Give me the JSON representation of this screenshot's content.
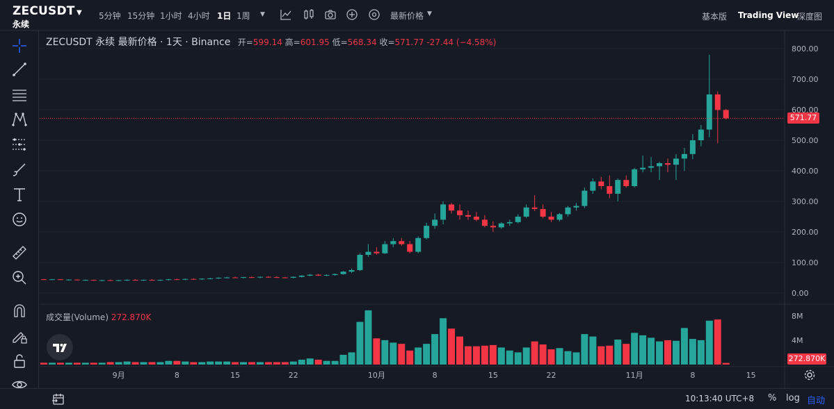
{
  "header": {
    "symbol": "ZECUSDT",
    "contract": "永续",
    "timeframes": [
      "5分钟",
      "15分钟",
      "1小时",
      "4小时",
      "1日",
      "1周"
    ],
    "active_timeframe": "1日",
    "price_type": "最新价格",
    "views": [
      "基本版",
      "Trading View",
      "深度图"
    ],
    "active_view": "Trading View"
  },
  "legend": {
    "title": "ZECUSDT 永续 最新价格 · 1天 · Binance",
    "open_label": "开=",
    "open": "599.14",
    "high_label": "高=",
    "high": "601.95",
    "low_label": "低=",
    "low": "568.34",
    "close_label": "收=",
    "close": "571.77",
    "change": "-27.44 (−4.58%)"
  },
  "volume_legend": {
    "label": "成交量(Volume)",
    "value": "272.870K"
  },
  "last_price_tag": "571.77",
  "volume_tag": "272.870K",
  "bottom": {
    "time": "10:13:40 UTC+8",
    "percent": "%",
    "log": "log",
    "auto": "自动"
  },
  "colors": {
    "up": "#26a69a",
    "down": "#f23645",
    "background": "#161a25",
    "grid": "#2a2e39",
    "accent": "#2962ff"
  },
  "icons": [
    "crosshair-icon",
    "trend-line-icon",
    "fib-icon",
    "pattern-icon",
    "forecast-icon",
    "brush-icon",
    "text-icon",
    "emoji-icon",
    "ruler-icon",
    "zoom-icon",
    "magnet-icon",
    "lock-draw-icon",
    "lock-icon",
    "eye-icon",
    "indicator-icon",
    "template-icon",
    "camera-icon",
    "plus-icon",
    "replay-icon",
    "date-range-icon",
    "settings-icon"
  ],
  "chart_data": {
    "type": "candlestick",
    "title": "ZECUSDT 永续 最新价格 · 1天 · Binance",
    "y_ticks": [
      "800.00",
      "700.00",
      "600.00",
      "500.00",
      "400.00",
      "300.00",
      "200.00",
      "100.00",
      "0.00"
    ],
    "ylim": [
      0,
      800
    ],
    "x_ticks": [
      "9月",
      "8",
      "15",
      "22",
      "10月",
      "8",
      "15",
      "22",
      "11月",
      "8",
      "15"
    ],
    "volume_ticks": [
      "8M",
      "4M"
    ],
    "volume_ylim": [
      0,
      9
    ],
    "grid": true,
    "candles": [
      {
        "o": 45,
        "h": 47,
        "l": 42,
        "c": 44,
        "v": 0.3
      },
      {
        "o": 44,
        "h": 46,
        "l": 42,
        "c": 45,
        "v": 0.3
      },
      {
        "o": 45,
        "h": 46,
        "l": 42,
        "c": 43,
        "v": 0.3
      },
      {
        "o": 43,
        "h": 45,
        "l": 41,
        "c": 44,
        "v": 0.3
      },
      {
        "o": 44,
        "h": 45,
        "l": 41,
        "c": 42,
        "v": 0.3
      },
      {
        "o": 42,
        "h": 44,
        "l": 40,
        "c": 43,
        "v": 0.3
      },
      {
        "o": 43,
        "h": 44,
        "l": 40,
        "c": 41,
        "v": 0.3
      },
      {
        "o": 41,
        "h": 43,
        "l": 39,
        "c": 42,
        "v": 0.3
      },
      {
        "o": 42,
        "h": 44,
        "l": 40,
        "c": 41,
        "v": 0.4
      },
      {
        "o": 41,
        "h": 43,
        "l": 39,
        "c": 42,
        "v": 0.4
      },
      {
        "o": 42,
        "h": 45,
        "l": 40,
        "c": 43,
        "v": 0.5
      },
      {
        "o": 43,
        "h": 45,
        "l": 41,
        "c": 42,
        "v": 0.4
      },
      {
        "o": 42,
        "h": 44,
        "l": 40,
        "c": 43,
        "v": 0.4
      },
      {
        "o": 43,
        "h": 45,
        "l": 41,
        "c": 42,
        "v": 0.4
      },
      {
        "o": 42,
        "h": 44,
        "l": 40,
        "c": 43,
        "v": 0.4
      },
      {
        "o": 43,
        "h": 46,
        "l": 41,
        "c": 45,
        "v": 0.6
      },
      {
        "o": 45,
        "h": 47,
        "l": 43,
        "c": 44,
        "v": 0.6
      },
      {
        "o": 44,
        "h": 47,
        "l": 42,
        "c": 46,
        "v": 0.5
      },
      {
        "o": 46,
        "h": 48,
        "l": 44,
        "c": 45,
        "v": 0.4
      },
      {
        "o": 45,
        "h": 48,
        "l": 43,
        "c": 47,
        "v": 0.4
      },
      {
        "o": 47,
        "h": 50,
        "l": 45,
        "c": 48,
        "v": 0.5
      },
      {
        "o": 48,
        "h": 51,
        "l": 46,
        "c": 50,
        "v": 0.5
      },
      {
        "o": 50,
        "h": 53,
        "l": 48,
        "c": 51,
        "v": 0.5
      },
      {
        "o": 51,
        "h": 54,
        "l": 49,
        "c": 50,
        "v": 0.4
      },
      {
        "o": 50,
        "h": 53,
        "l": 48,
        "c": 52,
        "v": 0.4
      },
      {
        "o": 52,
        "h": 54,
        "l": 49,
        "c": 51,
        "v": 0.4
      },
      {
        "o": 51,
        "h": 54,
        "l": 49,
        "c": 53,
        "v": 0.4
      },
      {
        "o": 53,
        "h": 55,
        "l": 50,
        "c": 52,
        "v": 0.4
      },
      {
        "o": 52,
        "h": 55,
        "l": 50,
        "c": 51,
        "v": 0.4
      },
      {
        "o": 51,
        "h": 53,
        "l": 48,
        "c": 50,
        "v": 0.4
      },
      {
        "o": 50,
        "h": 54,
        "l": 48,
        "c": 53,
        "v": 0.5
      },
      {
        "o": 53,
        "h": 58,
        "l": 51,
        "c": 57,
        "v": 0.8
      },
      {
        "o": 57,
        "h": 62,
        "l": 55,
        "c": 60,
        "v": 1.0
      },
      {
        "o": 60,
        "h": 63,
        "l": 56,
        "c": 57,
        "v": 0.8
      },
      {
        "o": 57,
        "h": 61,
        "l": 55,
        "c": 59,
        "v": 0.6
      },
      {
        "o": 59,
        "h": 64,
        "l": 57,
        "c": 62,
        "v": 0.6
      },
      {
        "o": 62,
        "h": 72,
        "l": 60,
        "c": 70,
        "v": 1.6
      },
      {
        "o": 70,
        "h": 80,
        "l": 66,
        "c": 75,
        "v": 2.0
      },
      {
        "o": 75,
        "h": 130,
        "l": 72,
        "c": 125,
        "v": 7.0
      },
      {
        "o": 125,
        "h": 160,
        "l": 118,
        "c": 135,
        "v": 8.9
      },
      {
        "o": 135,
        "h": 150,
        "l": 125,
        "c": 130,
        "v": 4.3
      },
      {
        "o": 130,
        "h": 170,
        "l": 128,
        "c": 160,
        "v": 4.0
      },
      {
        "o": 160,
        "h": 180,
        "l": 150,
        "c": 170,
        "v": 3.6
      },
      {
        "o": 170,
        "h": 180,
        "l": 155,
        "c": 160,
        "v": 3.4
      },
      {
        "o": 160,
        "h": 170,
        "l": 130,
        "c": 135,
        "v": 2.3
      },
      {
        "o": 135,
        "h": 185,
        "l": 130,
        "c": 180,
        "v": 2.8
      },
      {
        "o": 180,
        "h": 230,
        "l": 175,
        "c": 220,
        "v": 3.4
      },
      {
        "o": 220,
        "h": 260,
        "l": 210,
        "c": 240,
        "v": 5.0
      },
      {
        "o": 240,
        "h": 300,
        "l": 225,
        "c": 290,
        "v": 7.6
      },
      {
        "o": 290,
        "h": 295,
        "l": 260,
        "c": 270,
        "v": 5.9
      },
      {
        "o": 270,
        "h": 290,
        "l": 240,
        "c": 255,
        "v": 4.6
      },
      {
        "o": 255,
        "h": 270,
        "l": 240,
        "c": 250,
        "v": 3.0
      },
      {
        "o": 250,
        "h": 265,
        "l": 235,
        "c": 240,
        "v": 3.0
      },
      {
        "o": 240,
        "h": 255,
        "l": 215,
        "c": 220,
        "v": 3.1
      },
      {
        "o": 220,
        "h": 235,
        "l": 200,
        "c": 215,
        "v": 3.2
      },
      {
        "o": 215,
        "h": 232,
        "l": 210,
        "c": 228,
        "v": 2.8
      },
      {
        "o": 228,
        "h": 240,
        "l": 220,
        "c": 232,
        "v": 2.3
      },
      {
        "o": 232,
        "h": 258,
        "l": 228,
        "c": 250,
        "v": 2.0
      },
      {
        "o": 250,
        "h": 290,
        "l": 245,
        "c": 280,
        "v": 2.8
      },
      {
        "o": 280,
        "h": 320,
        "l": 268,
        "c": 275,
        "v": 3.8
      },
      {
        "o": 275,
        "h": 290,
        "l": 245,
        "c": 250,
        "v": 3.3
      },
      {
        "o": 250,
        "h": 265,
        "l": 232,
        "c": 240,
        "v": 2.5
      },
      {
        "o": 240,
        "h": 262,
        "l": 235,
        "c": 258,
        "v": 2.7
      },
      {
        "o": 258,
        "h": 285,
        "l": 250,
        "c": 280,
        "v": 2.2
      },
      {
        "o": 280,
        "h": 295,
        "l": 270,
        "c": 285,
        "v": 2.0
      },
      {
        "o": 285,
        "h": 345,
        "l": 278,
        "c": 335,
        "v": 5.0
      },
      {
        "o": 335,
        "h": 375,
        "l": 325,
        "c": 365,
        "v": 4.6
      },
      {
        "o": 365,
        "h": 380,
        "l": 340,
        "c": 350,
        "v": 3.0
      },
      {
        "o": 350,
        "h": 385,
        "l": 310,
        "c": 325,
        "v": 3.1
      },
      {
        "o": 325,
        "h": 375,
        "l": 300,
        "c": 370,
        "v": 4.1
      },
      {
        "o": 370,
        "h": 385,
        "l": 345,
        "c": 350,
        "v": 3.4
      },
      {
        "o": 350,
        "h": 410,
        "l": 345,
        "c": 405,
        "v": 5.2
      },
      {
        "o": 405,
        "h": 450,
        "l": 395,
        "c": 410,
        "v": 4.8
      },
      {
        "o": 410,
        "h": 445,
        "l": 395,
        "c": 415,
        "v": 4.4
      },
      {
        "o": 415,
        "h": 430,
        "l": 370,
        "c": 425,
        "v": 3.8
      },
      {
        "o": 425,
        "h": 440,
        "l": 395,
        "c": 420,
        "v": 4.0
      },
      {
        "o": 420,
        "h": 455,
        "l": 370,
        "c": 440,
        "v": 3.9
      },
      {
        "o": 440,
        "h": 475,
        "l": 400,
        "c": 455,
        "v": 6.0
      },
      {
        "o": 455,
        "h": 520,
        "l": 438,
        "c": 500,
        "v": 4.2
      },
      {
        "o": 500,
        "h": 550,
        "l": 480,
        "c": 535,
        "v": 4.0
      },
      {
        "o": 535,
        "h": 780,
        "l": 510,
        "c": 650,
        "v": 7.2
      },
      {
        "o": 650,
        "h": 660,
        "l": 490,
        "c": 599.14,
        "v": 7.4
      },
      {
        "o": 599.14,
        "h": 601.95,
        "l": 568.34,
        "c": 571.77,
        "v": 0.27287
      }
    ]
  }
}
